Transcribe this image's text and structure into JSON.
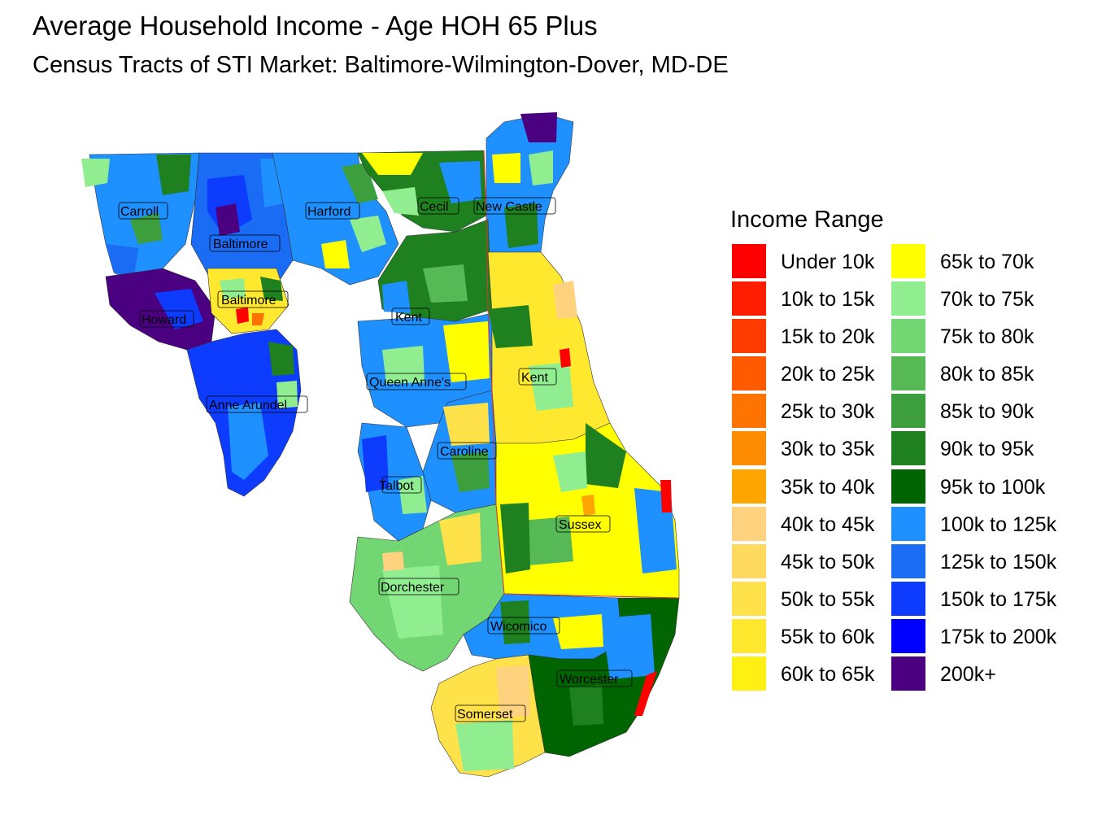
{
  "title": "Average Household Income - Age HOH 65 Plus",
  "subtitle": "Census Tracts of STI Market: Baltimore-Wilmington-Dover, MD-DE",
  "legend": {
    "title": "Income Range",
    "items": [
      {
        "label": "Under 10k",
        "color": "#FF0000"
      },
      {
        "label": "10k to 15k",
        "color": "#FF1E00"
      },
      {
        "label": "15k to 20k",
        "color": "#FF3C00"
      },
      {
        "label": "20k to 25k",
        "color": "#FF5A00"
      },
      {
        "label": "25k to 30k",
        "color": "#FF7400"
      },
      {
        "label": "30k to 35k",
        "color": "#FF8C00"
      },
      {
        "label": "35k to 40k",
        "color": "#FFA500"
      },
      {
        "label": "40k to 45k",
        "color": "#FFD27F"
      },
      {
        "label": "45k to 50k",
        "color": "#FFDA5F"
      },
      {
        "label": "50k to 55k",
        "color": "#FFE14A"
      },
      {
        "label": "55k to 60k",
        "color": "#FFE82E"
      },
      {
        "label": "60k to 65k",
        "color": "#FFF014"
      },
      {
        "label": "65k to 70k",
        "color": "#FFFF00"
      },
      {
        "label": "70k to 75k",
        "color": "#90EE90"
      },
      {
        "label": "75k to 80k",
        "color": "#72D672"
      },
      {
        "label": "80k to 85k",
        "color": "#56B956"
      },
      {
        "label": "85k to 90k",
        "color": "#3C9E3C"
      },
      {
        "label": "90k to 95k",
        "color": "#1E801E"
      },
      {
        "label": "95k to 100k",
        "color": "#006400"
      },
      {
        "label": "100k to 125k",
        "color": "#1E90FF"
      },
      {
        "label": "125k to 150k",
        "color": "#1A6CF5"
      },
      {
        "label": "150k to 175k",
        "color": "#0D3CFF"
      },
      {
        "label": "175k to 200k",
        "color": "#0000FF"
      },
      {
        "label": "200k+",
        "color": "#4B0082"
      }
    ]
  },
  "counties": [
    {
      "name": "Carroll"
    },
    {
      "name": "Harford"
    },
    {
      "name": "Cecil"
    },
    {
      "name": "New Castle"
    },
    {
      "name": "Baltimore"
    },
    {
      "name": "Baltimore"
    },
    {
      "name": "Howard"
    },
    {
      "name": "Kent"
    },
    {
      "name": "Kent"
    },
    {
      "name": "Queen Anne's"
    },
    {
      "name": "Anne Arundel"
    },
    {
      "name": "Caroline"
    },
    {
      "name": "Talbot"
    },
    {
      "name": "Sussex"
    },
    {
      "name": "Dorchester"
    },
    {
      "name": "Wicomico"
    },
    {
      "name": "Worcester"
    },
    {
      "name": "Somerset"
    }
  ]
}
